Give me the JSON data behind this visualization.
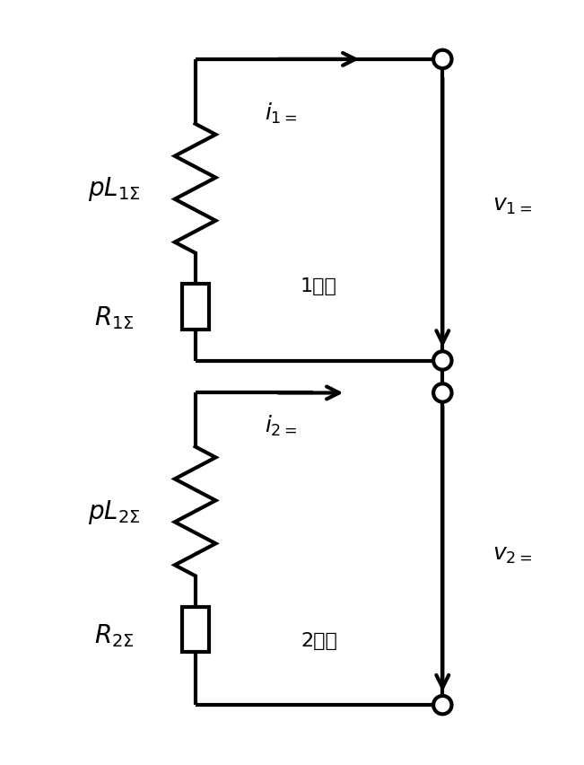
{
  "bg_color": "#ffffff",
  "line_color": "#000000",
  "line_width": 3.0,
  "fig_width": 6.51,
  "fig_height": 8.53,
  "labels": {
    "pL1": "$pL_{1\\Sigma}$",
    "R1": "$R_{1\\Sigma}$",
    "seq1": "1序网",
    "i1": "$i_{1=}$",
    "v1": "$v_{1=}$",
    "pL2": "$pL_{2\\Sigma}$",
    "R2": "$R_{2\\Sigma}$",
    "seq2": "2序网",
    "i2": "$i_{2=}$",
    "v2": "$v_{2=}$"
  }
}
